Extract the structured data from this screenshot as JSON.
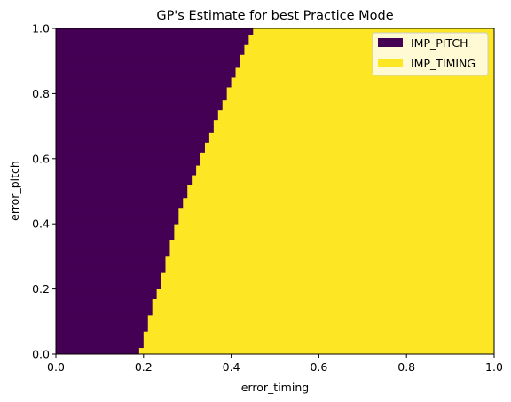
{
  "chart_data": {
    "type": "heatmap",
    "title": "GP's Estimate for best Practice Mode",
    "xlabel": "error_timing",
    "ylabel": "error_pitch",
    "xlim": [
      0,
      1
    ],
    "ylim": [
      0,
      1
    ],
    "x_ticks": [
      "0.0",
      "0.2",
      "0.4",
      "0.6",
      "0.8",
      "1.0"
    ],
    "y_ticks": [
      "0.0",
      "0.2",
      "0.4",
      "0.6",
      "0.8",
      "1.0"
    ],
    "grid": false,
    "legend_position": "top-right",
    "grid_resolution": 0.01,
    "categories": [
      {
        "name": "IMP_PITCH",
        "color": "#440154"
      },
      {
        "name": "IMP_TIMING",
        "color": "#fde725"
      }
    ],
    "boundary": {
      "description_x_threshold_per_row": true,
      "pitch": [
        0.0,
        0.05,
        0.1,
        0.15,
        0.2,
        0.25,
        0.3,
        0.35,
        0.4,
        0.45,
        0.5,
        0.55,
        0.6,
        0.65,
        0.7,
        0.75,
        0.8,
        0.85,
        0.9,
        0.95,
        1.0
      ],
      "timing": [
        0.19,
        0.2,
        0.21,
        0.22,
        0.235,
        0.245,
        0.255,
        0.265,
        0.275,
        0.285,
        0.3,
        0.315,
        0.33,
        0.345,
        0.36,
        0.375,
        0.39,
        0.405,
        0.42,
        0.435,
        0.45
      ]
    }
  }
}
